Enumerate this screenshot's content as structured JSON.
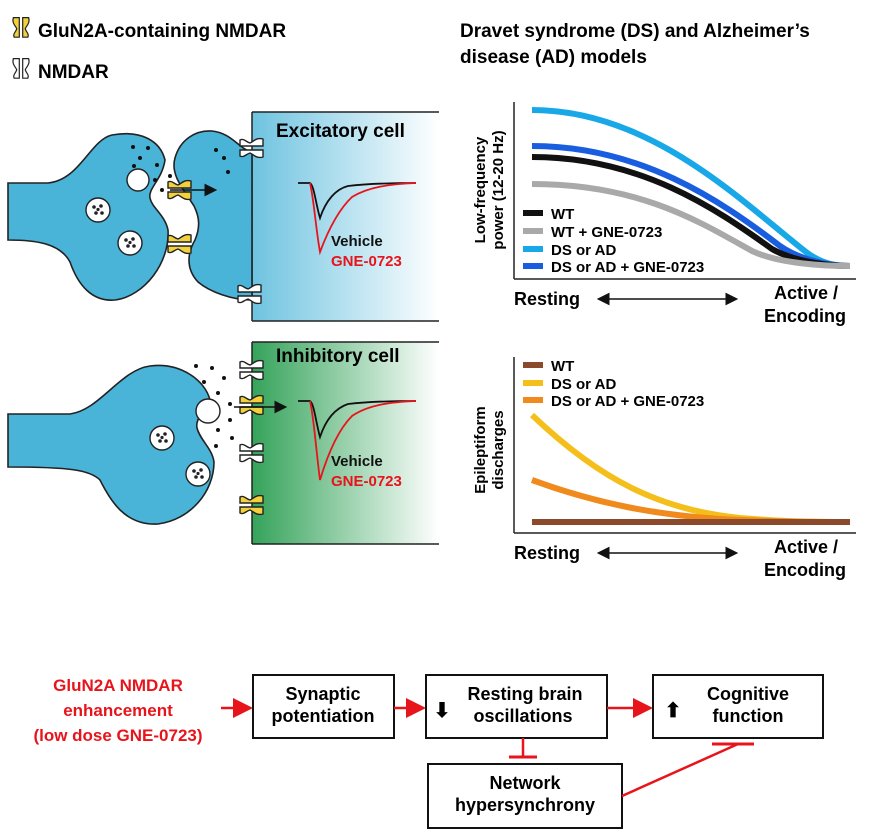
{
  "legend": {
    "glun2a": "GluN2A-containing NMDAR",
    "nmdar": "NMDAR"
  },
  "excitatory": {
    "title": "Excitatory cell",
    "vehicle": "Vehicle",
    "drug": "GNE-0723"
  },
  "inhibitory": {
    "title": "Inhibitory cell",
    "vehicle": "Vehicle",
    "drug": "GNE-0723"
  },
  "models_title": {
    "line1": "Dravet syndrome (DS) and Alzheimer’s",
    "line2": "disease (AD) models"
  },
  "axes": {
    "resting": "Resting",
    "active_line1": "Active /",
    "active_line2": "Encoding"
  },
  "top_chart": {
    "ylabel_line1": "Low-frequency",
    "ylabel_line2": "power (12-20 Hz)",
    "series": [
      {
        "name": "WT",
        "color": "#111111"
      },
      {
        "name": "WT + GNE-0723",
        "color": "#a9a9a9"
      },
      {
        "name": "DS or AD",
        "color": "#18a8e8"
      },
      {
        "name": "DS or AD + GNE-0723",
        "color": "#1a5ee0"
      }
    ]
  },
  "bottom_chart": {
    "ylabel_line1": "Epileptiform",
    "ylabel_line2": "discharges",
    "series": [
      {
        "name": "WT",
        "color": "#8b4a2b"
      },
      {
        "name": "DS or AD",
        "color": "#f5bf1b"
      },
      {
        "name": "DS or AD + GNE-0723",
        "color": "#f08a1c"
      }
    ]
  },
  "flow": {
    "input_line1": "GluN2A NMDAR",
    "input_line2": "enhancement",
    "input_line3": "(low dose GNE-0723)",
    "box1_line1": "Synaptic",
    "box1_line2": "potentiation",
    "box2_line1": "Resting brain",
    "box2_line2": "oscillations",
    "box3_line1": "Cognitive",
    "box3_line2": "function",
    "box4_line1": "Network",
    "box4_line2": "hypersynchrony",
    "down_arrow": "⬇",
    "up_arrow": "⬆"
  },
  "colors": {
    "red": "#e8141c",
    "neuron_blue": "#4ab3d8",
    "receptor_yellow": "#f2d13c"
  }
}
